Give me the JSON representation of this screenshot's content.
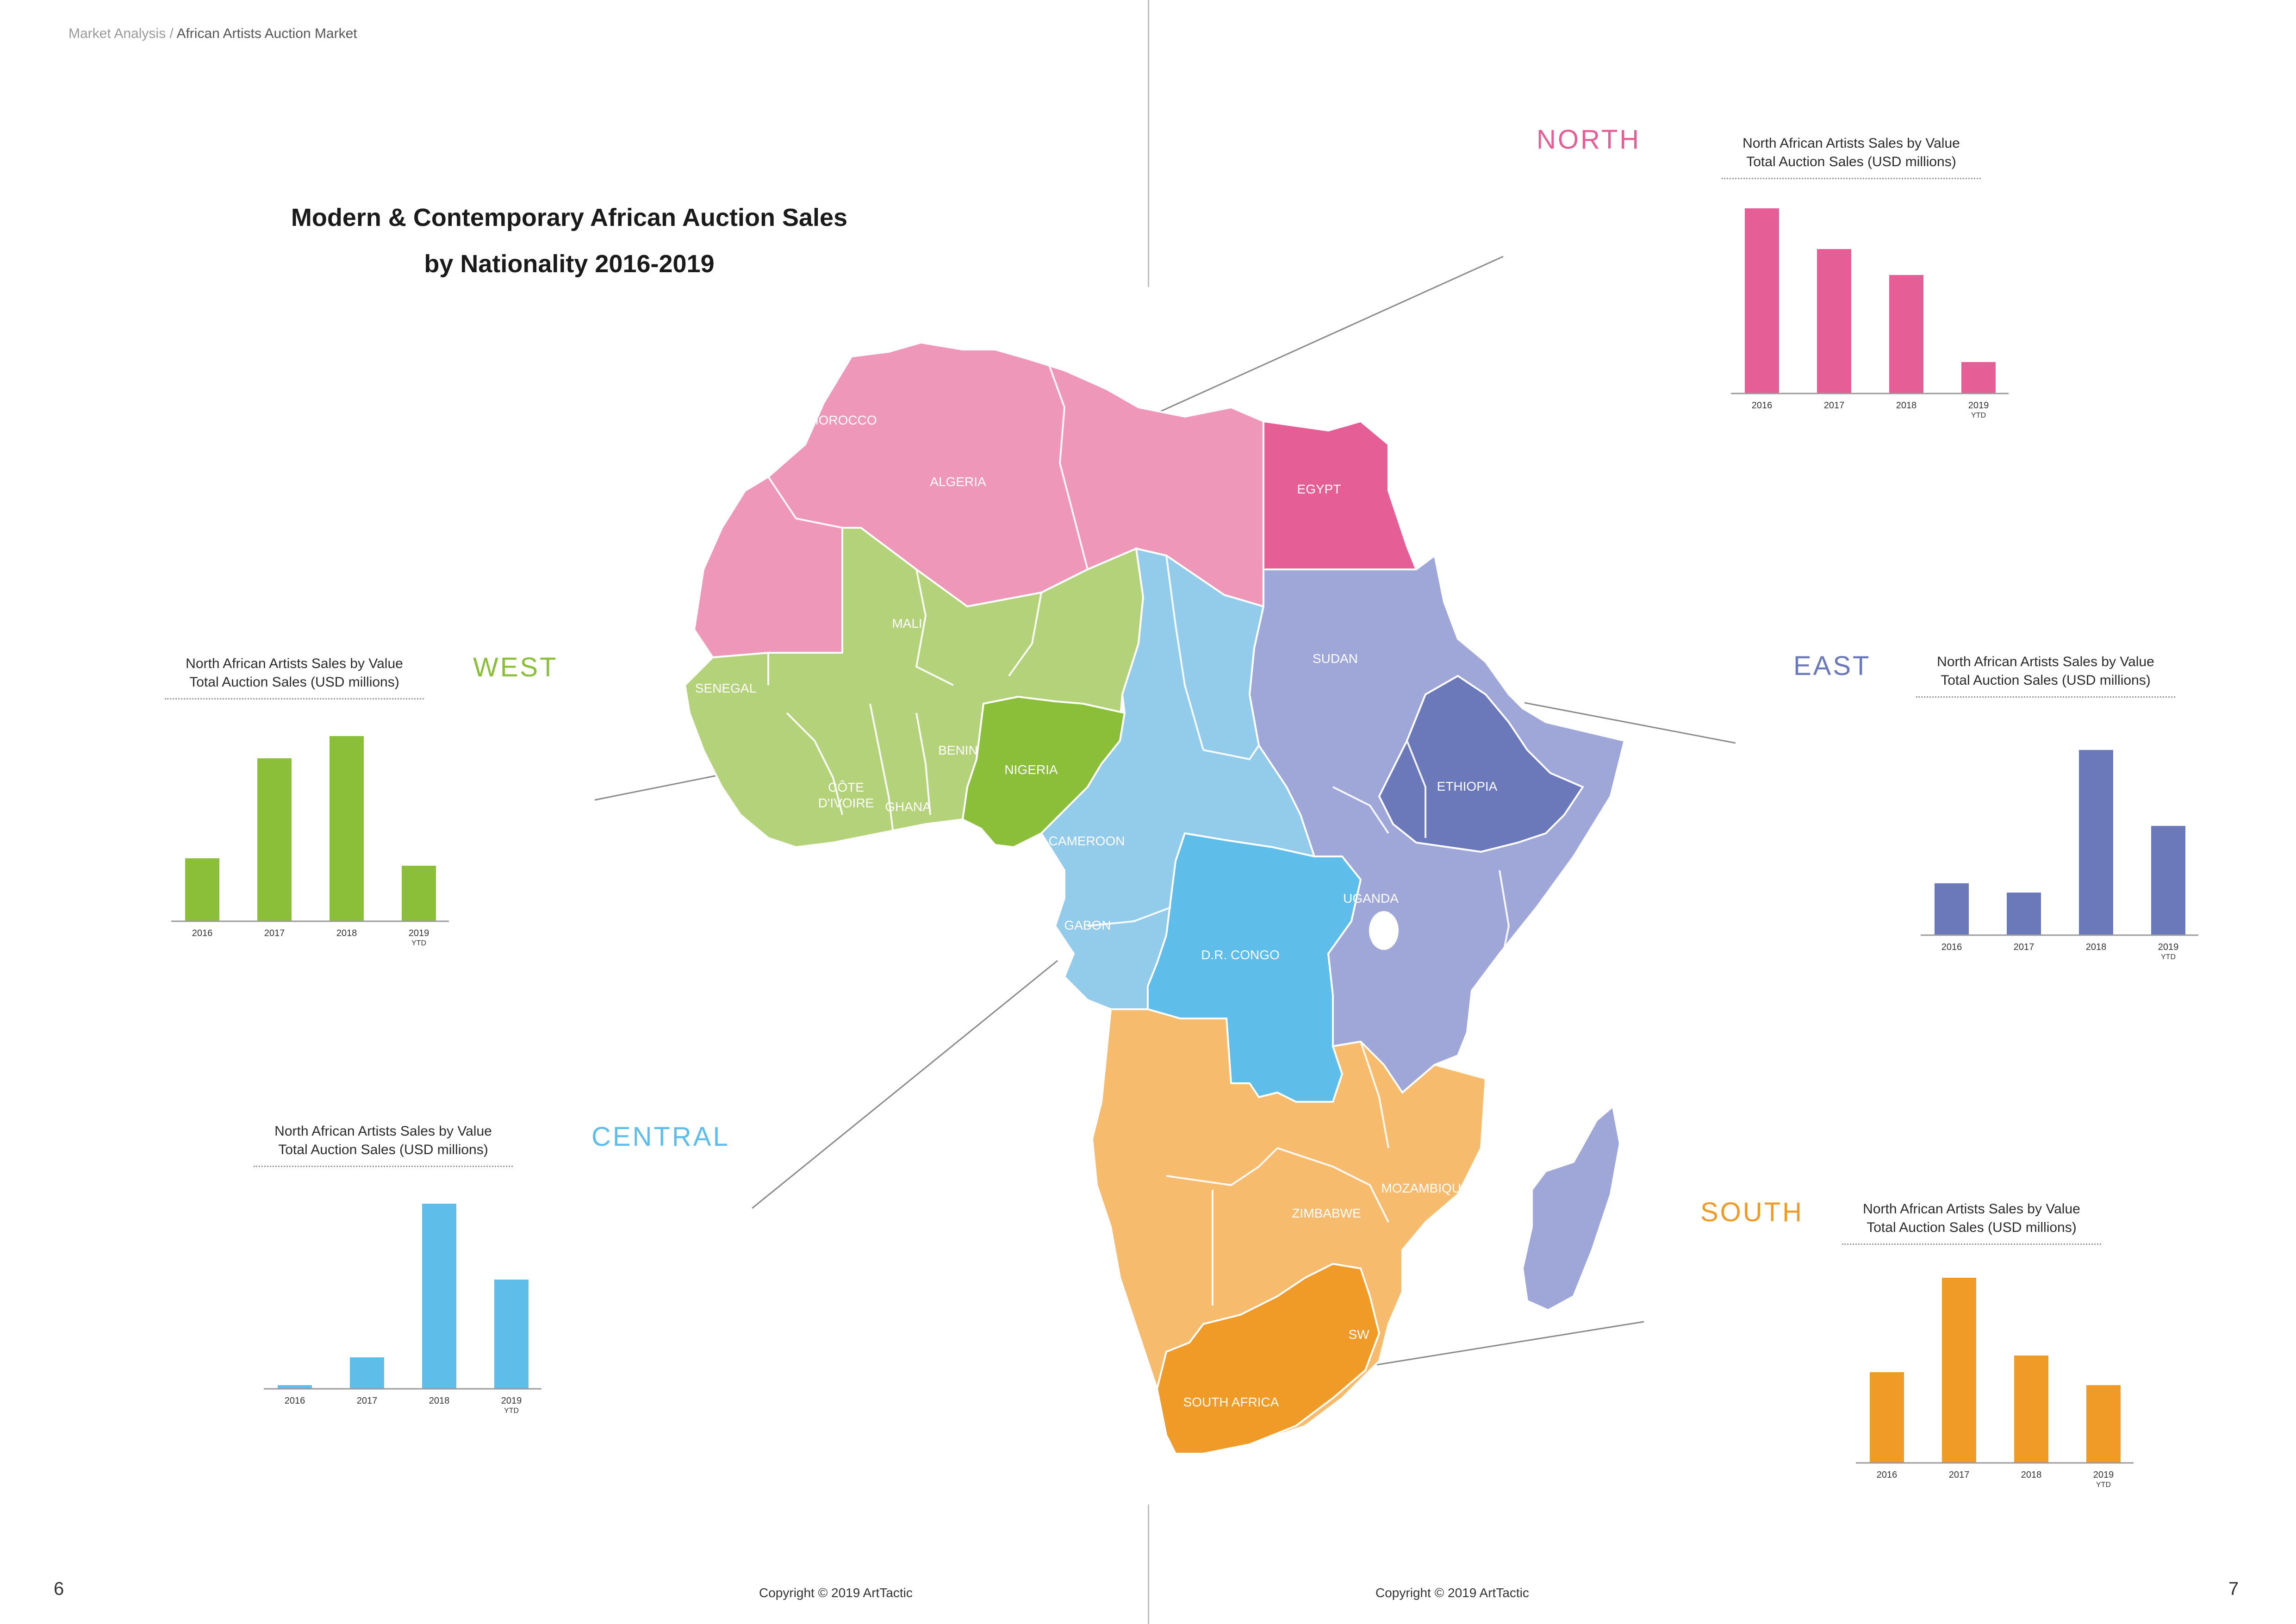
{
  "header": {
    "breadcrumb_section": "Market Analysis",
    "breadcrumb_separator": " / ",
    "breadcrumb_page": "African Artists Auction Market"
  },
  "main_title": {
    "line1": "Modern & Contemporary African Auction Sales",
    "line2": "by Nationality 2016-2019"
  },
  "regions": {
    "north": "NORTH",
    "west": "WEST",
    "east": "EAST",
    "central": "CENTRAL",
    "south": "SOUTH"
  },
  "map": {
    "country_labels": [
      "MOROCCO",
      "ALGERIA",
      "EGYPT",
      "MALI",
      "SENEGAL",
      "BENIN",
      "NIGERIA",
      "CÔTE",
      "D'IVOIRE",
      "GHANA",
      "SUDAN",
      "ETHIOPIA",
      "CAMEROON",
      "GABON",
      "D.R. CONGO",
      "UGANDA",
      "ZIMBABWE",
      "MOZAMBIQUE",
      "SW",
      "SOUTH AFRICA"
    ],
    "region_colors": {
      "north": "#ef97b9",
      "north_highlight": "#e55f96",
      "west": "#b3d27a",
      "west_highlight": "#8bbf3a",
      "central": "#93cbeb",
      "central_highlight": "#5fbde9",
      "east": "#9ea7d7",
      "east_highlight": "#6b79bb",
      "south": "#f7bb6d",
      "south_highlight": "#f09a28"
    }
  },
  "chart_data": [
    {
      "type": "bar",
      "region": "NORTH",
      "title": "North African Artists Sales by Value",
      "subtitle": "Total Auction Sales (USD millions)",
      "categories": [
        "2016",
        "2017",
        "2018",
        "2019"
      ],
      "category_notes": [
        "",
        "",
        "",
        "YTD"
      ],
      "values": [
        1.0,
        0.78,
        0.64,
        0.17
      ],
      "color": "#e55f96"
    },
    {
      "type": "bar",
      "region": "WEST",
      "title": "North African Artists Sales by Value",
      "subtitle": "Total Auction Sales (USD millions)",
      "categories": [
        "2016",
        "2017",
        "2018",
        "2019"
      ],
      "category_notes": [
        "",
        "",
        "",
        "YTD"
      ],
      "values": [
        0.34,
        0.88,
        1.0,
        0.3
      ],
      "color": "#8bbf3a"
    },
    {
      "type": "bar",
      "region": "EAST",
      "title": "North African Artists Sales by Value",
      "subtitle": "Total Auction Sales (USD millions)",
      "categories": [
        "2016",
        "2017",
        "2018",
        "2019"
      ],
      "category_notes": [
        "",
        "",
        "",
        "YTD"
      ],
      "values": [
        0.28,
        0.23,
        1.0,
        0.59
      ],
      "color": "#6b79bb"
    },
    {
      "type": "bar",
      "region": "CENTRAL",
      "title": "North African Artists Sales by Value",
      "subtitle": "Total Auction Sales (USD millions)",
      "categories": [
        "2016",
        "2017",
        "2018",
        "2019"
      ],
      "category_notes": [
        "",
        "",
        "",
        "YTD"
      ],
      "values": [
        0.02,
        0.17,
        1.0,
        0.59
      ],
      "color": "#5fbde9"
    },
    {
      "type": "bar",
      "region": "SOUTH",
      "title": "North African Artists Sales by Value",
      "subtitle": "Total Auction Sales (USD millions)",
      "categories": [
        "2016",
        "2017",
        "2018",
        "2019"
      ],
      "category_notes": [
        "",
        "",
        "",
        "YTD"
      ],
      "values": [
        0.49,
        1.0,
        0.58,
        0.42
      ],
      "color": "#f09a28"
    }
  ],
  "footer": {
    "page_left": "6",
    "page_right": "7",
    "copyright_left": "Copyright © 2019 ArtTactic",
    "copyright_right": "Copyright © 2019 ArtTactic"
  }
}
